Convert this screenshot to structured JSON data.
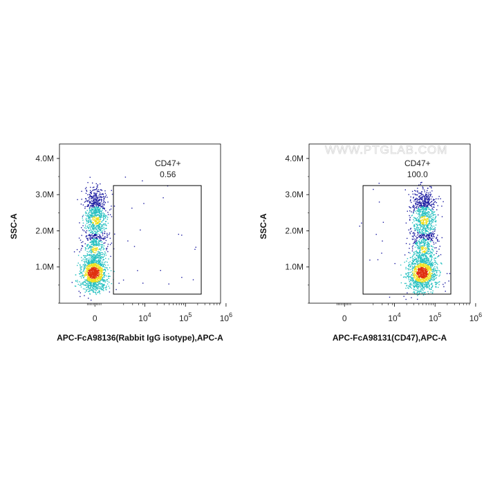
{
  "chart_data": [
    {
      "type": "scatter",
      "title": "",
      "xlabel": "APC-FcA98136(Rabbit IgG isotype),APC-A",
      "ylabel": "SSC-A",
      "x_scale": "biexponential",
      "y_scale": "linear",
      "xlim": [
        -3000,
        1500000
      ],
      "ylim": [
        0,
        4400000
      ],
      "x_ticks": [
        {
          "value": 0,
          "base": "0",
          "exp": ""
        },
        {
          "value": 10000,
          "base": "10",
          "exp": "4"
        },
        {
          "value": 100000,
          "base": "10",
          "exp": "5"
        },
        {
          "value": 1000000,
          "base": "10",
          "exp": "6"
        }
      ],
      "y_ticks": [
        {
          "value": 1000000,
          "label": "1.0M"
        },
        {
          "value": 2000000,
          "label": "2.0M"
        },
        {
          "value": 3000000,
          "label": "3.0M"
        },
        {
          "value": 4000000,
          "label": "4.0M"
        }
      ],
      "gate": {
        "name": "CD47+",
        "percent": "0.56",
        "x_range": [
          1700,
          500000
        ],
        "y_range": [
          250000,
          3250000
        ]
      },
      "population": {
        "main_x_center": 0,
        "main_y_center": 850000,
        "shifted_to_positive": false,
        "watermark": ""
      }
    },
    {
      "type": "scatter",
      "title": "",
      "xlabel": "APC-FcA98131(CD47),APC-A",
      "ylabel": "SSC-A",
      "x_scale": "biexponential",
      "y_scale": "linear",
      "xlim": [
        -3000,
        1500000
      ],
      "ylim": [
        0,
        4400000
      ],
      "x_ticks": [
        {
          "value": 0,
          "base": "0",
          "exp": ""
        },
        {
          "value": 10000,
          "base": "10",
          "exp": "4"
        },
        {
          "value": 100000,
          "base": "10",
          "exp": "5"
        },
        {
          "value": 1000000,
          "base": "10",
          "exp": "6"
        }
      ],
      "y_ticks": [
        {
          "value": 1000000,
          "label": "1.0M"
        },
        {
          "value": 2000000,
          "label": "2.0M"
        },
        {
          "value": 3000000,
          "label": "3.0M"
        },
        {
          "value": 4000000,
          "label": "4.0M"
        }
      ],
      "gate": {
        "name": "CD47+",
        "percent": "100.0",
        "x_range": [
          1700,
          500000
        ],
        "y_range": [
          250000,
          3250000
        ]
      },
      "population": {
        "main_x_center": 60000,
        "main_y_center": 850000,
        "shifted_to_positive": true,
        "watermark": "WWW.PTGLAB.COM"
      }
    }
  ],
  "colors": {
    "density_low": "#1a1aa0",
    "density_mid": "#25c0c0",
    "density_high_1": "#f0e020",
    "density_high_2": "#e03010",
    "gate": "#000000",
    "axis": "#000000"
  }
}
